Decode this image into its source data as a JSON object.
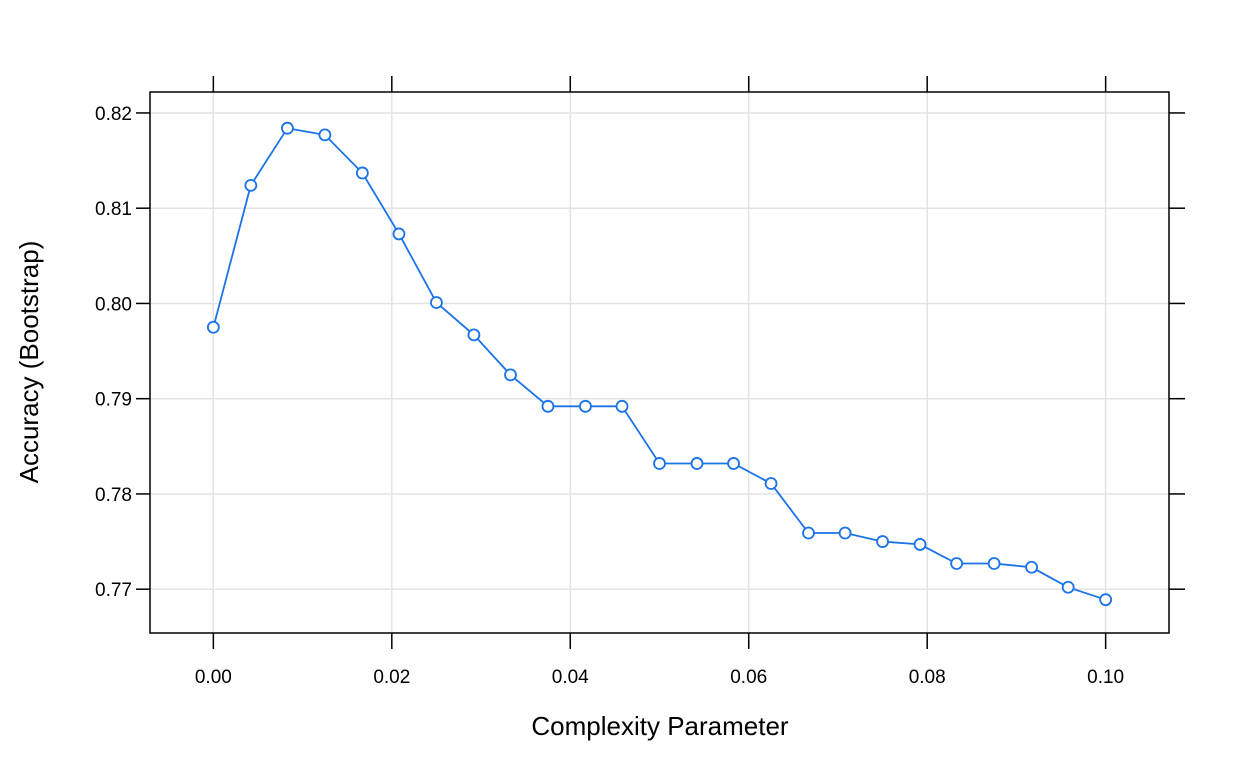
{
  "chart_data": {
    "type": "line",
    "xlabel": "Complexity Parameter",
    "ylabel": "Accuracy (Bootstrap)",
    "xlim": [
      -0.0071,
      0.1071
    ],
    "ylim": [
      0.7654,
      0.8222
    ],
    "x_ticks": [
      "0.00",
      "0.02",
      "0.04",
      "0.06",
      "0.08",
      "0.10"
    ],
    "y_ticks": [
      "0.77",
      "0.78",
      "0.79",
      "0.80",
      "0.81",
      "0.82"
    ],
    "grid": true,
    "line_color": "#1a73e8",
    "points": [
      {
        "x": 0.0,
        "y": 0.7975
      },
      {
        "x": 0.0042,
        "y": 0.8124
      },
      {
        "x": 0.0083,
        "y": 0.8184
      },
      {
        "x": 0.0125,
        "y": 0.8177
      },
      {
        "x": 0.0167,
        "y": 0.8137
      },
      {
        "x": 0.0208,
        "y": 0.8073
      },
      {
        "x": 0.025,
        "y": 0.8001
      },
      {
        "x": 0.0292,
        "y": 0.7967
      },
      {
        "x": 0.0333,
        "y": 0.7925
      },
      {
        "x": 0.0375,
        "y": 0.7892
      },
      {
        "x": 0.0417,
        "y": 0.7892
      },
      {
        "x": 0.0458,
        "y": 0.7892
      },
      {
        "x": 0.05,
        "y": 0.7832
      },
      {
        "x": 0.0542,
        "y": 0.7832
      },
      {
        "x": 0.0583,
        "y": 0.7832
      },
      {
        "x": 0.0625,
        "y": 0.7811
      },
      {
        "x": 0.0667,
        "y": 0.7759
      },
      {
        "x": 0.0708,
        "y": 0.7759
      },
      {
        "x": 0.075,
        "y": 0.775
      },
      {
        "x": 0.0792,
        "y": 0.7747
      },
      {
        "x": 0.0833,
        "y": 0.7727
      },
      {
        "x": 0.0875,
        "y": 0.7727
      },
      {
        "x": 0.0917,
        "y": 0.7723
      },
      {
        "x": 0.0958,
        "y": 0.7702
      },
      {
        "x": 0.1,
        "y": 0.7689
      }
    ]
  }
}
